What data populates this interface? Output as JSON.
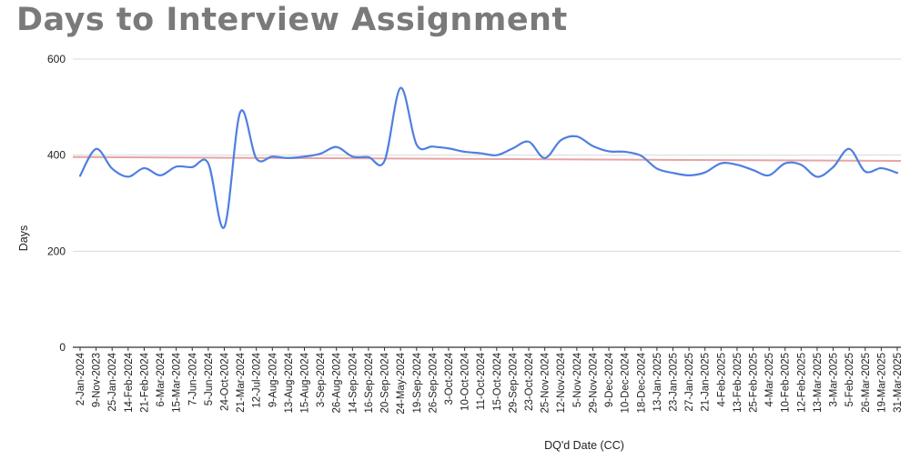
{
  "chart_data": {
    "type": "line",
    "title": "Days to Interview Assignment",
    "xlabel": "DQ'd Date (CC)",
    "ylabel": "Days",
    "ylim": [
      0,
      600
    ],
    "yticks": [
      0,
      200,
      400,
      600
    ],
    "grid": true,
    "colors": {
      "series": "#4f7fe0",
      "trendline": "#e8a3a3",
      "grid": "#d9d9d9",
      "title": "#7a7a7a"
    },
    "categories": [
      "2-Jan-2024",
      "9-Nov-2023",
      "25-Jan-2024",
      "14-Feb-2024",
      "21-Feb-2024",
      "6-Mar-2024",
      "15-Mar-2024",
      "7-Jun-2024",
      "5-Jun-2024",
      "24-Oct-2024",
      "21-Mar-2024",
      "12-Jul-2024",
      "9-Aug-2024",
      "13-Aug-2024",
      "15-Aug-2024",
      "3-Sep-2024",
      "26-Aug-2024",
      "14-Sep-2024",
      "16-Sep-2024",
      "20-Sep-2024",
      "24-May-2024",
      "19-Sep-2024",
      "26-Sep-2024",
      "3-Oct-2024",
      "10-Oct-2024",
      "11-Oct-2024",
      "15-Oct-2024",
      "29-Sep-2024",
      "23-Oct-2024",
      "25-Nov-2024",
      "12-Nov-2024",
      "5-Nov-2024",
      "29-Nov-2024",
      "9-Dec-2024",
      "10-Dec-2024",
      "18-Dec-2024",
      "13-Jan-2025",
      "23-Jan-2025",
      "27-Jan-2025",
      "21-Jan-2025",
      "4-Feb-2025",
      "13-Feb-2025",
      "25-Feb-2025",
      "4-Mar-2025",
      "10-Feb-2025",
      "12-Feb-2025",
      "13-Mar-2025",
      "3-Mar-2025",
      "5-Feb-2025",
      "26-Mar-2025",
      "19-Mar-2025",
      "31-Mar-2025"
    ],
    "series": [
      {
        "values": [
          357,
          413,
          372,
          355,
          373,
          358,
          376,
          375,
          383,
          250,
          490,
          393,
          397,
          394,
          397,
          403,
          417,
          397,
          396,
          388,
          540,
          422,
          418,
          414,
          407,
          404,
          400,
          414,
          428,
          394,
          431,
          439,
          419,
          408,
          407,
          399,
          372,
          363,
          358,
          364,
          383,
          380,
          369,
          358,
          383,
          380,
          355,
          375,
          413,
          366,
          373,
          363
        ]
      }
    ],
    "trendline": {
      "start": 396,
      "end": 388
    }
  }
}
